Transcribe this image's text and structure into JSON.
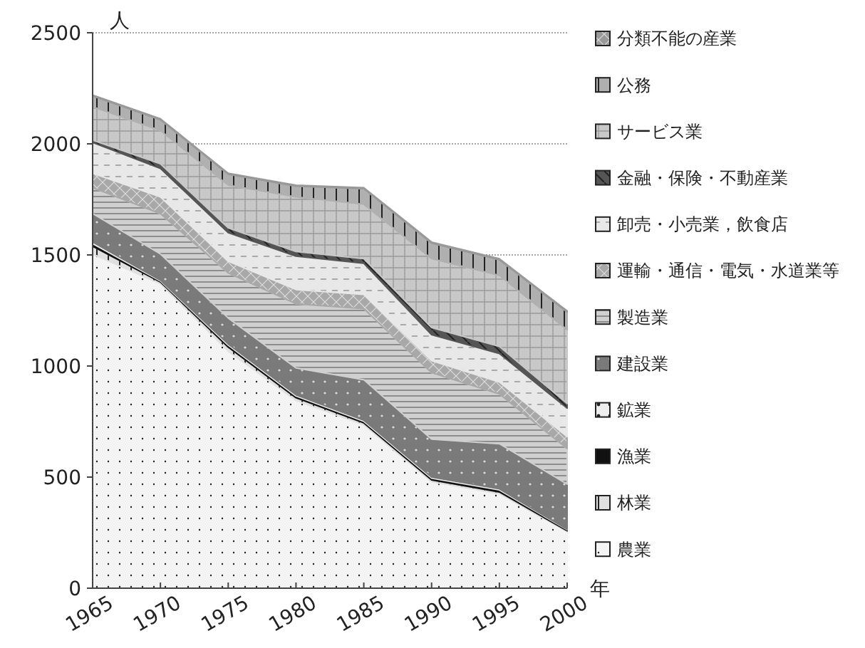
{
  "chart_data": {
    "type": "area",
    "stacked": true,
    "xlabel": "年",
    "ylabel": "人",
    "x": [
      1965,
      1970,
      1975,
      1980,
      1985,
      1990,
      1995,
      2000
    ],
    "xlim": [
      1965,
      2000
    ],
    "xticks": [
      1965,
      1970,
      1975,
      1980,
      1985,
      1990,
      1995,
      2000
    ],
    "ylim": [
      0,
      2500
    ],
    "yticks": [
      0,
      500,
      1000,
      1500,
      2000,
      2500
    ],
    "grid": "y",
    "legend": "right",
    "series": [
      {
        "name": "農業",
        "color": "#f4f4f4",
        "values": [
          1504,
          1370,
          1067,
          845,
          735,
          479,
          425,
          254
        ]
      },
      {
        "name": "林業",
        "color": "#e0e0e0",
        "values": [
          35,
          8,
          18,
          12,
          9,
          8,
          8,
          4
        ]
      },
      {
        "name": "漁業",
        "color": "#111111",
        "values": [
          12,
          5,
          9,
          8,
          7,
          8,
          9,
          5
        ]
      },
      {
        "name": "鉱業",
        "color": "#eeeeee",
        "values": [
          7,
          3,
          5,
          5,
          5,
          5,
          5,
          2
        ]
      },
      {
        "name": "建設業",
        "color": "#7a7a7a",
        "values": [
          128,
          118,
          117,
          121,
          182,
          171,
          203,
          203
        ]
      },
      {
        "name": "製造業",
        "color": "#d0d0d0",
        "values": [
          117,
          182,
          203,
          289,
          320,
          299,
          224,
          160
        ]
      },
      {
        "name": "運輸・通信・電気・水道業等",
        "color": "#a8a8a8",
        "values": [
          65,
          75,
          53,
          64,
          64,
          54,
          54,
          54
        ]
      },
      {
        "name": "卸売・小売業，飲食店",
        "color": "#e8e8e8",
        "values": [
          138,
          128,
          128,
          150,
          140,
          117,
          128,
          128
        ]
      },
      {
        "name": "金融・保険・不動産業",
        "color": "#555555",
        "values": [
          11,
          21,
          22,
          21,
          21,
          32,
          32,
          21
        ]
      },
      {
        "name": "サービス業",
        "color": "#c8c8c8",
        "values": [
          150,
          150,
          192,
          246,
          245,
          310,
          320,
          332
        ]
      },
      {
        "name": "公務",
        "color": "#b0b0b0",
        "values": [
          48,
          48,
          49,
          48,
          70,
          70,
          70,
          80
        ]
      },
      {
        "name": "分類不能の産業",
        "color": "#999999",
        "values": [
          5,
          5,
          5,
          5,
          5,
          5,
          5,
          5
        ]
      }
    ]
  }
}
